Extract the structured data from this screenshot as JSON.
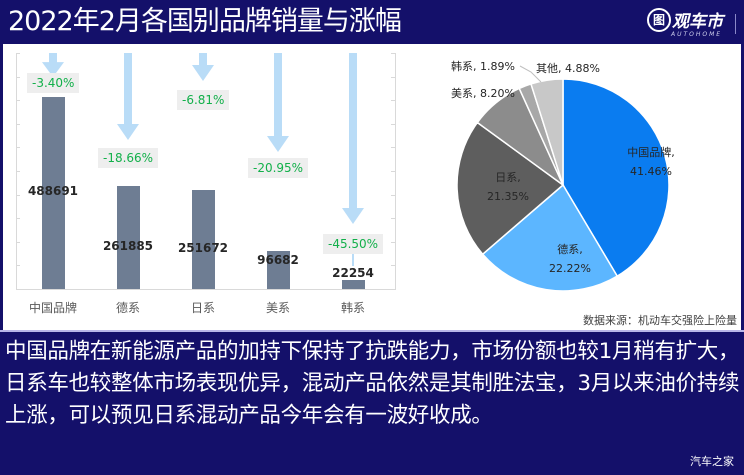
{
  "header": {
    "title": "2022年2月各国别品牌销量与涨幅",
    "logo": {
      "glyph": "图",
      "name": "观车市",
      "sub": "AUTOHOME"
    }
  },
  "chart_data": [
    {
      "type": "bar",
      "title": "",
      "categories": [
        "中国品牌",
        "德系",
        "日系",
        "美系",
        "韩系"
      ],
      "values": [
        488691,
        261885,
        251672,
        96682,
        22254
      ],
      "growth_labels": [
        "-3.40%",
        "-18.66%",
        "-6.81%",
        "-20.95%",
        "-45.50%"
      ],
      "growth_values": [
        -3.4,
        -18.66,
        -6.81,
        -20.95,
        -45.5
      ],
      "xlabel": "",
      "ylabel": "",
      "ylim": [
        0,
        600000
      ],
      "grid": false,
      "bar_color": "#6e7d93",
      "arrow_color": "#b9dcf7",
      "growth_label_color": "#12b04a"
    },
    {
      "type": "pie",
      "categories": [
        "中国品牌",
        "德系",
        "日系",
        "美系",
        "韩系",
        "其他"
      ],
      "values": [
        41.46,
        22.22,
        21.35,
        8.2,
        1.89,
        4.88
      ],
      "labels": [
        "中国品牌, 41.46%",
        "德系, 22.22%",
        "日系, 21.35%",
        "美系, 8.20%",
        "韩系, 1.89%",
        "其他, 4.88%"
      ],
      "colors": [
        "#0a7cf0",
        "#5cb6ff",
        "#5e5e5e",
        "#8c8c8c",
        "#a8a8a8",
        "#c8c8c8"
      ],
      "start_angle_deg": 0,
      "direction": "clockwise"
    }
  ],
  "pie_labels": {
    "china": {
      "name": "中国品牌,",
      "pct": "41.46%"
    },
    "de": {
      "name": "德系,",
      "pct": "22.22%"
    },
    "jp": {
      "name": "日系,",
      "pct": "21.35%"
    },
    "us": "美系, 8.20%",
    "kr": "韩系, 1.89%",
    "other": "其他, 4.88%"
  },
  "source": "数据来源：机动车交强险上险量",
  "body_text": "中国品牌在新能源产品的加持下保持了抗跌能力，市场份额也较1月稍有扩大，日系车也较整体市场表现优异，混动产品依然是其制胜法宝，3月以来油价持续上涨，可以预见日系混动产品今年会有一波好收成。",
  "watermark": "汽车之家"
}
